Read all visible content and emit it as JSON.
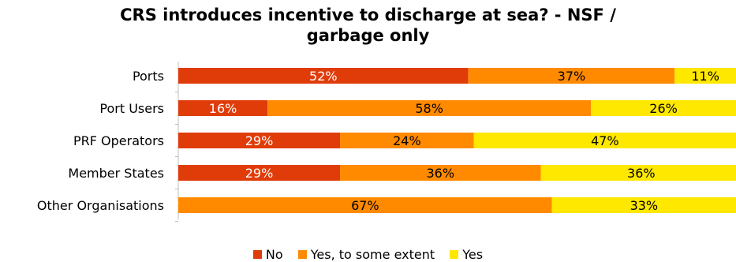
{
  "chart_data": {
    "type": "bar",
    "orientation": "horizontal",
    "stacked": true,
    "title_lines": [
      "CRS introduces incentive to discharge at sea? - NSF /",
      "garbage only"
    ],
    "categories": [
      "Ports",
      "Port Users",
      "PRF Operators",
      "Member States",
      "Other Organisations"
    ],
    "series": [
      {
        "name": "No",
        "color": "#e03c0a",
        "label_color": "#ffffff",
        "values": [
          52,
          16,
          29,
          29,
          0
        ]
      },
      {
        "name": "Yes, to some extent",
        "color": "#ff8a00",
        "label_color": "#000000",
        "values": [
          37,
          58,
          24,
          36,
          67
        ]
      },
      {
        "name": "Yes",
        "color": "#ffe800",
        "label_color": "#000000",
        "values": [
          11,
          26,
          47,
          36,
          33
        ]
      }
    ],
    "value_labels": [
      [
        "52%",
        "37%",
        "11%"
      ],
      [
        "16%",
        "58%",
        "26%"
      ],
      [
        "29%",
        "24%",
        "47%"
      ],
      [
        "29%",
        "36%",
        "36%"
      ],
      [
        "%",
        "67%",
        "33%"
      ]
    ],
    "xlim": [
      0,
      100
    ],
    "grid": false,
    "legend_position": "bottom"
  }
}
